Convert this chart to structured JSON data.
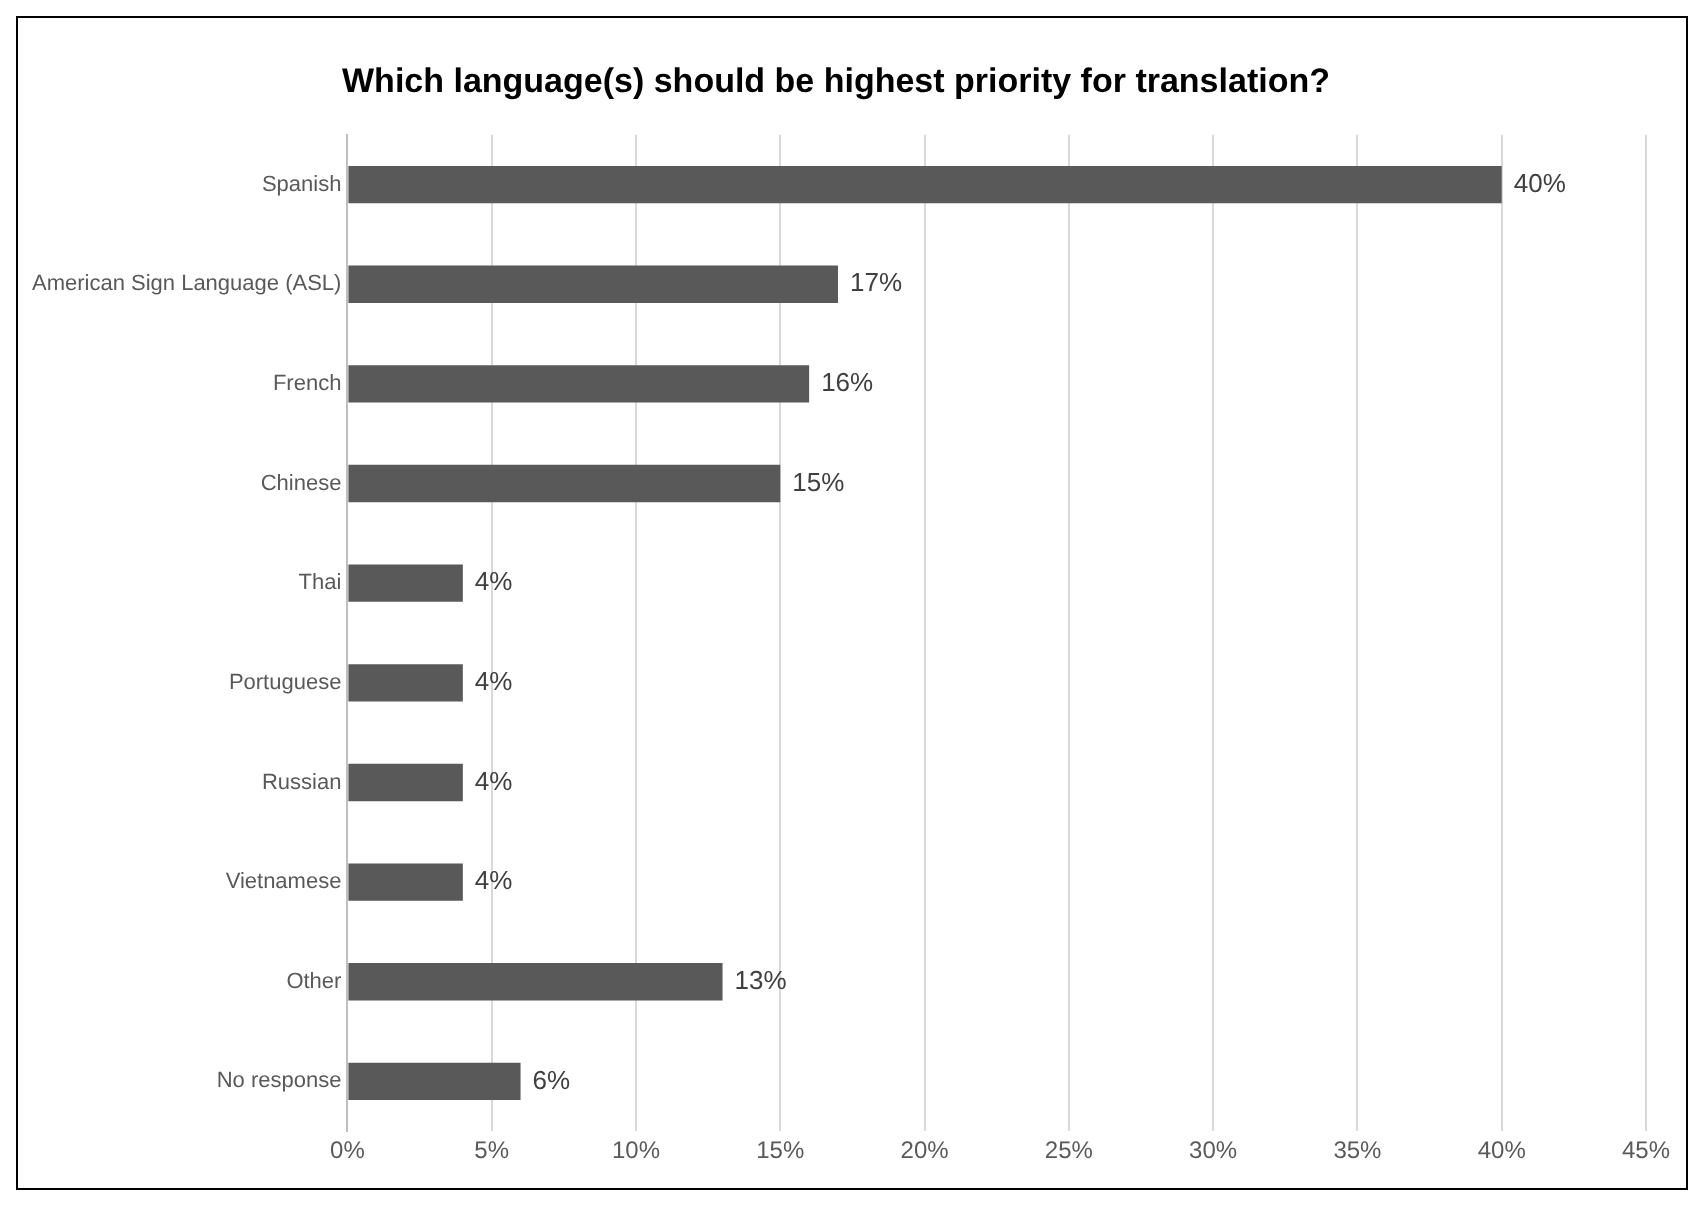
{
  "chart_data": {
    "type": "bar",
    "orientation": "horizontal",
    "title": "Which language(s) should be highest priority for translation?",
    "categories": [
      "Spanish",
      "American Sign Language (ASL)",
      "French",
      "Chinese",
      "Thai",
      "Portuguese",
      "Russian",
      "Vietnamese",
      "Other",
      "No response"
    ],
    "values": [
      40,
      17,
      16,
      15,
      4,
      4,
      4,
      4,
      13,
      6
    ],
    "value_labels": [
      "40%",
      "17%",
      "16%",
      "15%",
      "4%",
      "4%",
      "4%",
      "4%",
      "13%",
      "6%"
    ],
    "color": "#595959",
    "xlim": [
      0,
      45
    ],
    "xticks": [
      {
        "value": 0,
        "label": "0%"
      },
      {
        "value": 5,
        "label": "5%"
      },
      {
        "value": 10,
        "label": "10%"
      },
      {
        "value": 15,
        "label": "15%"
      },
      {
        "value": 20,
        "label": "20%"
      },
      {
        "value": 25,
        "label": "25%"
      },
      {
        "value": 30,
        "label": "30%"
      },
      {
        "value": 35,
        "label": "35%"
      },
      {
        "value": 40,
        "label": "40%"
      },
      {
        "value": 45,
        "label": "45%"
      }
    ],
    "grid": "x",
    "legend": false
  }
}
